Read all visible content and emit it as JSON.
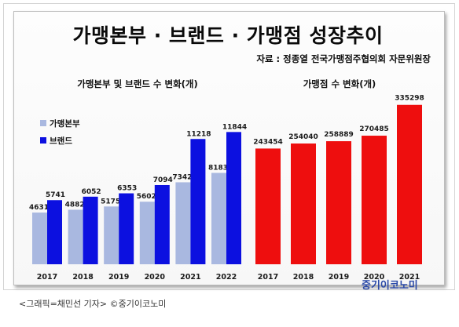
{
  "title": "가맹본부 · 브랜드 · 가맹점 성장추이",
  "source": "자료 : 정종열 전국가맹점주협의회 자문위원장",
  "brand_logo": "중기이코노미",
  "caption": "<그래픽=채민선 기자>  ©중기이코노미",
  "colors": {
    "franchisor": "#a9b8e0",
    "brand": "#0c10e0",
    "store": "#ee0e0e"
  },
  "chart_data": [
    {
      "type": "bar",
      "title": "가맹본부 및 브랜드 수 변화(개)",
      "categories": [
        "2017",
        "2018",
        "2019",
        "2020",
        "2021",
        "2022"
      ],
      "series": [
        {
          "name": "가맹본부",
          "values": [
            4631,
            4882,
            5175,
            5602,
            7342,
            8183
          ],
          "labels": [
            "4631",
            "4882",
            "5175",
            "5602",
            "7342",
            "8183"
          ]
        },
        {
          "name": "브랜드",
          "values": [
            5741,
            6052,
            6353,
            7094,
            11218,
            11844
          ],
          "labels": [
            "5741",
            "6052",
            "6353",
            "7094",
            "11218",
            "11844"
          ]
        }
      ],
      "legend": "top-left",
      "grid": false
    },
    {
      "type": "bar",
      "title": "가맹점 수 변화(개)",
      "categories": [
        "2017",
        "2018",
        "2019",
        "2020",
        "2021"
      ],
      "series": [
        {
          "values": [
            243454,
            254040,
            258889,
            270485,
            335298
          ],
          "labels": [
            "243454",
            "254040",
            "258889",
            "270485",
            "335298"
          ]
        }
      ],
      "grid": false
    }
  ]
}
